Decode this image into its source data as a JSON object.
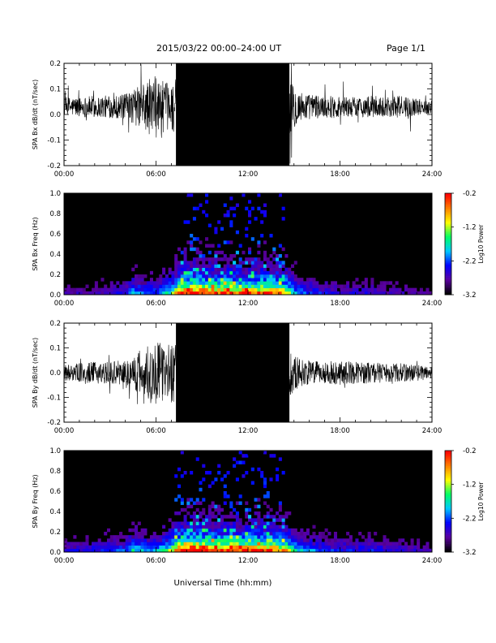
{
  "header": {
    "title": "2015/03/22  00:00–24:00 UT",
    "page": "Page 1/1"
  },
  "footer": {
    "xlabel": "Universal Time (hh:mm)"
  },
  "colors": {
    "background": "#ffffff",
    "trace": "#000000",
    "spectrogram_background": "#000000",
    "colormap": [
      "#000000",
      "#5a00a0",
      "#0000ff",
      "#00c8ff",
      "#00ff64",
      "#ffff00",
      "#ff8000",
      "#ff0000"
    ]
  },
  "chart_data": [
    {
      "id": "bx_trace",
      "type": "line",
      "ylabel": "SPA Bx dB/dt (nT/sec)",
      "xlim": [
        0,
        24
      ],
      "ylim": [
        -0.2,
        0.2
      ],
      "x_tick_labels": [
        "00:00",
        "06:00",
        "12:00",
        "18:00",
        "24:00"
      ],
      "x_tick_values": [
        0,
        6,
        12,
        18,
        24
      ],
      "y_tick_labels": [
        "-0.2",
        "-0.1",
        "0.0",
        "0.1",
        "0.2"
      ],
      "y_tick_values": [
        -0.2,
        -0.1,
        0.0,
        0.1,
        0.2
      ],
      "envelope": {
        "hours": [
          0,
          1,
          2,
          3,
          4,
          4.5,
          5,
          5.5,
          6,
          6.5,
          7,
          7.5,
          8,
          10,
          12,
          13,
          14,
          14.5,
          15,
          15.5,
          16,
          17,
          18,
          19,
          20,
          21,
          22,
          23,
          24
        ],
        "amplitude": [
          0.07,
          0.07,
          0.08,
          0.08,
          0.09,
          0.12,
          0.16,
          0.2,
          0.22,
          0.18,
          0.16,
          0.24,
          0.3,
          0.3,
          0.3,
          0.3,
          0.28,
          0.22,
          0.15,
          0.11,
          0.09,
          0.08,
          0.08,
          0.07,
          0.08,
          0.07,
          0.08,
          0.06,
          0.05
        ],
        "offset": 0.03
      }
    },
    {
      "id": "bx_spec",
      "type": "heatmap",
      "ylabel": "SPA Bx Freq (Hz)",
      "colorbar_label": "Log10 Power",
      "xlim": [
        0,
        24
      ],
      "ylim": [
        0.0,
        1.0
      ],
      "clim": [
        -3.2,
        -0.2
      ],
      "x_tick_labels": [
        "00:00",
        "06:00",
        "12:00",
        "18:00",
        "24:00"
      ],
      "x_tick_values": [
        0,
        6,
        12,
        18,
        24
      ],
      "y_tick_labels": [
        "0.0",
        "0.2",
        "0.4",
        "0.6",
        "0.8",
        "1.0"
      ],
      "y_tick_values": [
        0.0,
        0.2,
        0.4,
        0.6,
        0.8,
        1.0
      ],
      "cbar_tick_labels": [
        "-0.2",
        "-1.2",
        "-2.2",
        "-3.2"
      ],
      "cbar_tick_values": [
        -0.2,
        -1.2,
        -2.2,
        -3.2
      ],
      "activity": {
        "hours": [
          0,
          2,
          4,
          4.5,
          5,
          6,
          7,
          7.5,
          8,
          9,
          10,
          11,
          12,
          13,
          14,
          14.5,
          15,
          16,
          18,
          20,
          22,
          24
        ],
        "level": [
          0.15,
          0.15,
          0.25,
          0.4,
          0.35,
          0.3,
          0.5,
          0.8,
          0.95,
          0.9,
          0.85,
          0.85,
          0.8,
          0.85,
          0.8,
          0.7,
          0.4,
          0.3,
          0.2,
          0.2,
          0.15,
          0.1
        ]
      }
    },
    {
      "id": "by_trace",
      "type": "line",
      "ylabel": "SPA By dB/dt (nT/sec)",
      "xlim": [
        0,
        24
      ],
      "ylim": [
        -0.2,
        0.2
      ],
      "x_tick_labels": [
        "00:00",
        "06:00",
        "12:00",
        "18:00",
        "24:00"
      ],
      "x_tick_values": [
        0,
        6,
        12,
        18,
        24
      ],
      "y_tick_labels": [
        "-0.2",
        "-0.1",
        "0.0",
        "0.1",
        "0.2"
      ],
      "y_tick_values": [
        -0.2,
        -0.1,
        0.0,
        0.1,
        0.2
      ],
      "envelope": {
        "hours": [
          0,
          1,
          2,
          3,
          4,
          4.5,
          5,
          5.5,
          6,
          6.5,
          7,
          7.5,
          8,
          10,
          12,
          13,
          14,
          14.5,
          15,
          15.5,
          16,
          17,
          18,
          19,
          20,
          21,
          22,
          23,
          24
        ],
        "amplitude": [
          0.06,
          0.07,
          0.08,
          0.08,
          0.1,
          0.13,
          0.18,
          0.22,
          0.24,
          0.2,
          0.22,
          0.28,
          0.3,
          0.3,
          0.3,
          0.3,
          0.26,
          0.2,
          0.14,
          0.1,
          0.09,
          0.08,
          0.09,
          0.08,
          0.08,
          0.07,
          0.07,
          0.06,
          0.05
        ],
        "offset": 0.0
      }
    },
    {
      "id": "by_spec",
      "type": "heatmap",
      "ylabel": "SPA By Freq (Hz)",
      "colorbar_label": "Log10 Power",
      "xlim": [
        0,
        24
      ],
      "ylim": [
        0.0,
        1.0
      ],
      "clim": [
        -3.2,
        -0.2
      ],
      "x_tick_labels": [
        "00:00",
        "06:00",
        "12:00",
        "18:00",
        "24:00"
      ],
      "x_tick_values": [
        0,
        6,
        12,
        18,
        24
      ],
      "y_tick_labels": [
        "0.0",
        "0.2",
        "0.4",
        "0.6",
        "0.8",
        "1.0"
      ],
      "y_tick_values": [
        0.0,
        0.2,
        0.4,
        0.6,
        0.8,
        1.0
      ],
      "cbar_tick_labels": [
        "-0.2",
        "-1.2",
        "-2.2",
        "-3.2"
      ],
      "cbar_tick_values": [
        -0.2,
        -1.2,
        -2.2,
        -3.2
      ],
      "activity": {
        "hours": [
          0,
          2,
          4,
          4.5,
          5,
          6,
          7,
          7.5,
          8,
          9,
          10,
          11,
          12,
          13,
          14,
          14.5,
          15,
          16,
          18,
          20,
          22,
          24
        ],
        "level": [
          0.2,
          0.25,
          0.3,
          0.45,
          0.4,
          0.35,
          0.6,
          0.9,
          1.0,
          0.95,
          0.9,
          0.9,
          0.85,
          0.85,
          0.8,
          0.7,
          0.45,
          0.35,
          0.25,
          0.25,
          0.2,
          0.15
        ]
      }
    }
  ]
}
